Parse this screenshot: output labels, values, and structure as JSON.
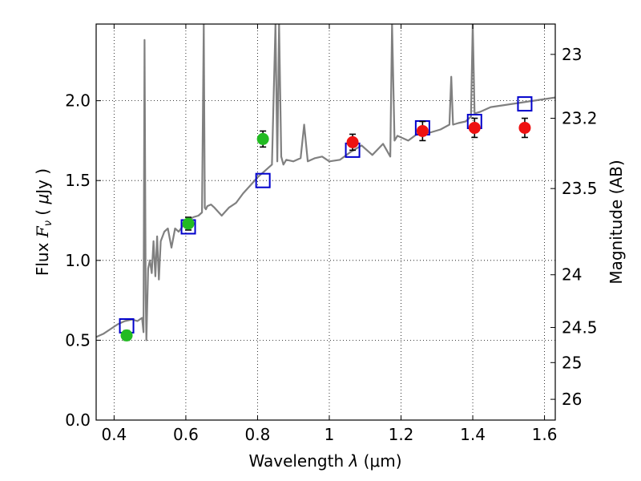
{
  "chart_data": {
    "type": "scatter",
    "xlabel": "Wavelength  λ (μm)",
    "ylabel": "Flux  F_ν  ( μJy )",
    "ylabel_parts": {
      "prefix": "Flux  ",
      "symbol": "F",
      "subscript": "ν",
      "paren_open": "  ( ",
      "mu": "μ",
      "unit": "Jy )"
    },
    "xlabel_parts": {
      "prefix": "Wavelength  ",
      "symbol": "λ",
      "unit": " (μm)"
    },
    "y2label": "Magnitude (AB)",
    "xlim": [
      0.35,
      1.63
    ],
    "ylim": [
      0.0,
      2.48
    ],
    "grid": true,
    "x_ticks": [
      {
        "value": 0.4,
        "label": "0.4"
      },
      {
        "value": 0.6,
        "label": "0.6"
      },
      {
        "value": 0.8,
        "label": "0.8"
      },
      {
        "value": 1.0,
        "label": "1"
      },
      {
        "value": 1.2,
        "label": "1.2"
      },
      {
        "value": 1.4,
        "label": "1.4"
      },
      {
        "value": 1.6,
        "label": "1.6"
      }
    ],
    "y_ticks": [
      {
        "value": 0.0,
        "label": "0.0"
      },
      {
        "value": 0.5,
        "label": "0.5"
      },
      {
        "value": 1.0,
        "label": "1.0"
      },
      {
        "value": 1.5,
        "label": "1.5"
      },
      {
        "value": 2.0,
        "label": "2.0"
      }
    ],
    "y2_ticks": [
      {
        "flux": 2.29,
        "label": "23"
      },
      {
        "flux": 1.89,
        "label": "23.2"
      },
      {
        "flux": 1.45,
        "label": "23.5"
      },
      {
        "flux": 0.91,
        "label": "24"
      },
      {
        "flux": 0.58,
        "label": "24.5"
      },
      {
        "flux": 0.36,
        "label": "25"
      },
      {
        "flux": 0.13,
        "label": "26"
      }
    ],
    "series": [
      {
        "kind": "model_spectrum",
        "color": "#808080",
        "x": [
          0.35,
          0.37,
          0.39,
          0.41,
          0.43,
          0.45,
          0.465,
          0.478,
          0.482,
          0.485,
          0.488,
          0.49,
          0.495,
          0.5,
          0.505,
          0.51,
          0.515,
          0.52,
          0.525,
          0.53,
          0.54,
          0.55,
          0.56,
          0.57,
          0.58,
          0.6,
          0.62,
          0.635,
          0.645,
          0.65,
          0.653,
          0.656,
          0.66,
          0.67,
          0.68,
          0.7,
          0.72,
          0.74,
          0.76,
          0.78,
          0.8,
          0.82,
          0.84,
          0.85,
          0.855,
          0.86,
          0.866,
          0.872,
          0.88,
          0.9,
          0.92,
          0.93,
          0.94,
          0.96,
          0.98,
          1.0,
          1.03,
          1.06,
          1.09,
          1.12,
          1.15,
          1.17,
          1.175,
          1.182,
          1.19,
          1.22,
          1.25,
          1.28,
          1.31,
          1.335,
          1.34,
          1.345,
          1.36,
          1.38,
          1.395,
          1.4,
          1.405,
          1.42,
          1.45,
          1.48,
          1.51,
          1.54,
          1.57,
          1.6,
          1.63
        ],
        "y": [
          0.52,
          0.54,
          0.57,
          0.6,
          0.62,
          0.63,
          0.62,
          0.64,
          0.55,
          2.38,
          0.8,
          0.5,
          0.95,
          1.0,
          0.92,
          1.12,
          0.9,
          1.15,
          0.88,
          1.12,
          1.18,
          1.2,
          1.08,
          1.2,
          1.18,
          1.24,
          1.27,
          1.28,
          1.3,
          2.48,
          1.33,
          1.32,
          1.34,
          1.35,
          1.33,
          1.28,
          1.33,
          1.36,
          1.42,
          1.47,
          1.52,
          1.56,
          1.6,
          2.48,
          1.62,
          2.48,
          1.65,
          1.6,
          1.63,
          1.62,
          1.64,
          1.85,
          1.62,
          1.64,
          1.65,
          1.62,
          1.63,
          1.68,
          1.72,
          1.66,
          1.73,
          1.65,
          2.48,
          1.75,
          1.78,
          1.75,
          1.8,
          1.8,
          1.82,
          1.85,
          2.15,
          1.85,
          1.86,
          1.87,
          1.9,
          2.48,
          1.92,
          1.93,
          1.96,
          1.97,
          1.98,
          1.99,
          2.0,
          2.01,
          2.02
        ]
      },
      {
        "kind": "model_photometry",
        "marker": "open-square",
        "color": "#0000cc",
        "x": [
          0.435,
          0.607,
          0.815,
          1.065,
          1.26,
          1.405,
          1.545
        ],
        "y": [
          0.59,
          1.21,
          1.5,
          1.69,
          1.83,
          1.87,
          1.98
        ]
      },
      {
        "kind": "observed_optical",
        "marker": "filled-circle",
        "color": "#22bb22",
        "x": [
          0.435,
          0.607,
          0.815
        ],
        "y": [
          0.53,
          1.23,
          1.76
        ],
        "yerr": [
          0.03,
          0.04,
          0.05
        ]
      },
      {
        "kind": "observed_nir",
        "marker": "filled-circle",
        "color": "#ee1111",
        "x": [
          1.065,
          1.26,
          1.405,
          1.545
        ],
        "y": [
          1.74,
          1.81,
          1.83,
          1.83
        ],
        "yerr": [
          0.05,
          0.06,
          0.06,
          0.06
        ]
      }
    ]
  }
}
